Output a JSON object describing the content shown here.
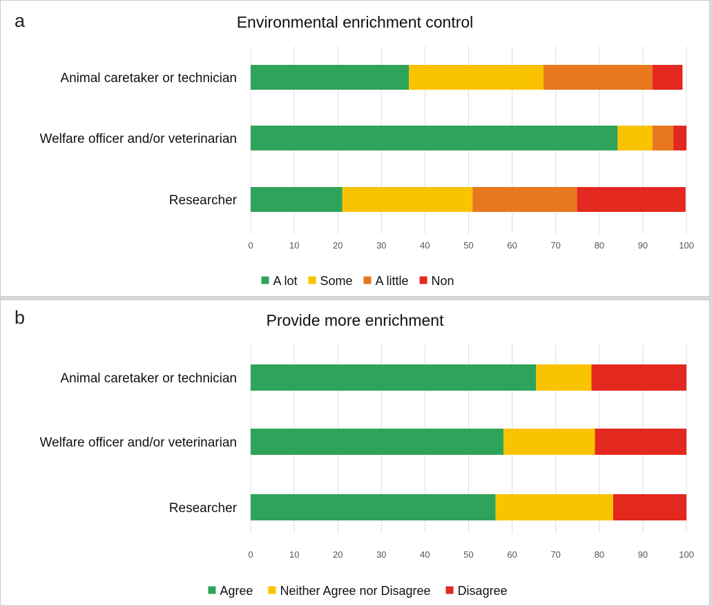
{
  "chart_data": [
    {
      "panel": "a",
      "type": "bar",
      "orientation": "horizontal",
      "stacked": true,
      "title": "Environmental enrichment control",
      "categories": [
        "Animal caretaker or technician",
        "Welfare officer and/or veterinarian",
        "Researcher"
      ],
      "series": [
        {
          "name": "A lot",
          "color": "#2ea35a",
          "values": [
            36.3,
            84.2,
            21.0
          ]
        },
        {
          "name": "Some",
          "color": "#f9c300",
          "values": [
            30.9,
            8.0,
            29.9
          ]
        },
        {
          "name": "A little",
          "color": "#e8771d",
          "values": [
            25.0,
            4.8,
            24.0
          ]
        },
        {
          "name": "Non",
          "color": "#e3281f",
          "values": [
            6.9,
            3.0,
            24.9
          ]
        }
      ],
      "xlim": [
        0,
        100
      ],
      "xticks": [
        0,
        10,
        20,
        30,
        40,
        50,
        60,
        70,
        80,
        90,
        100
      ],
      "grid": "vertical",
      "legend": "bottom"
    },
    {
      "panel": "b",
      "type": "bar",
      "orientation": "horizontal",
      "stacked": true,
      "title": "Provide more enrichment",
      "categories": [
        "Animal caretaker or technician",
        "Welfare officer and/or veterinarian",
        "Researcher"
      ],
      "series": [
        {
          "name": "Agree",
          "color": "#2ea35a",
          "values": [
            65.5,
            58.0,
            56.2
          ]
        },
        {
          "name": "Neither Agree nor Disagree",
          "color": "#f9c300",
          "values": [
            12.7,
            21.0,
            27.0
          ]
        },
        {
          "name": "Disagree",
          "color": "#e3281f",
          "values": [
            21.8,
            21.0,
            16.8
          ]
        }
      ],
      "xlim": [
        0,
        100
      ],
      "xticks": [
        0,
        10,
        20,
        30,
        40,
        50,
        60,
        70,
        80,
        90,
        100
      ],
      "grid": "vertical",
      "legend": "bottom"
    }
  ]
}
